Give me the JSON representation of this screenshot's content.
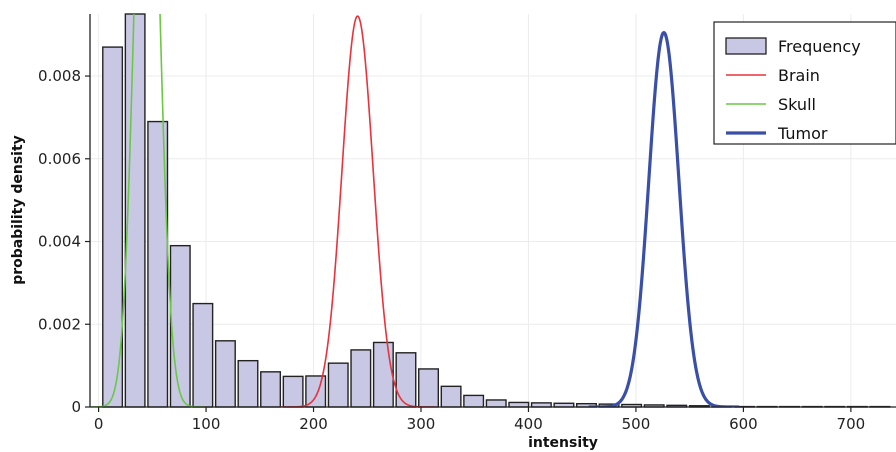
{
  "chart_data": {
    "type": "bar",
    "title": "",
    "xlabel": "intensity",
    "ylabel": "probability density",
    "xlim": [
      -8,
      742
    ],
    "ylim": [
      0,
      0.0095
    ],
    "x_ticks": [
      0,
      100,
      200,
      300,
      400,
      500,
      600,
      700
    ],
    "x_tick_labels": [
      "0",
      "100",
      "200",
      "300",
      "400",
      "500",
      "600",
      "700"
    ],
    "y_ticks": [
      0,
      0.002,
      0.004,
      0.006,
      0.008
    ],
    "y_tick_labels": [
      "0",
      "0.002",
      "0.004",
      "0.006",
      "0.008"
    ],
    "grid": true,
    "legend_position": "top-right",
    "histogram": {
      "name": "Frequency",
      "color": "#c8c8e4",
      "edge_color": "#222222",
      "bin_width": 21,
      "centers": [
        13,
        34,
        55,
        76,
        97,
        118,
        139,
        160,
        181,
        202,
        223,
        244,
        265,
        286,
        307,
        328,
        349,
        370,
        391,
        412,
        433,
        454,
        475,
        496,
        517,
        538,
        559,
        580,
        601,
        622,
        643,
        664,
        685,
        706,
        727
      ],
      "values": [
        0.0087,
        0.0096,
        0.0069,
        0.0039,
        0.0025,
        0.0016,
        0.00112,
        0.00085,
        0.00074,
        0.00075,
        0.00106,
        0.00138,
        0.00156,
        0.00131,
        0.00092,
        0.0005,
        0.00028,
        0.00017,
        0.00011,
        0.0001,
        9e-05,
        8e-05,
        7e-05,
        6e-05,
        5e-05,
        4e-05,
        3e-05,
        2e-05,
        1e-05,
        1e-05,
        1e-05,
        1e-05,
        1e-05,
        1e-05,
        1e-05
      ]
    },
    "series": [
      {
        "name": "Brain",
        "type": "line",
        "color": "#e8323c",
        "mean": 241,
        "std": 14.5,
        "peak": 0.00945,
        "width": 1.6
      },
      {
        "name": "Skull",
        "type": "line",
        "color": "#6ac844",
        "mean": 45,
        "std": 11,
        "peak": 0.0175,
        "width": 1.6
      },
      {
        "name": "Tumor",
        "type": "line",
        "color": "#3a4fa8",
        "mean": 526,
        "std": 14,
        "peak": 0.00905,
        "width": 3.2
      }
    ],
    "legend": [
      {
        "label": "Frequency",
        "kind": "box",
        "color": "#c8c8e4"
      },
      {
        "label": "Brain",
        "kind": "line",
        "color": "#e8323c"
      },
      {
        "label": "Skull",
        "kind": "line",
        "color": "#6ac844"
      },
      {
        "label": "Tumor",
        "kind": "line",
        "color": "#3a4fa8"
      }
    ]
  }
}
